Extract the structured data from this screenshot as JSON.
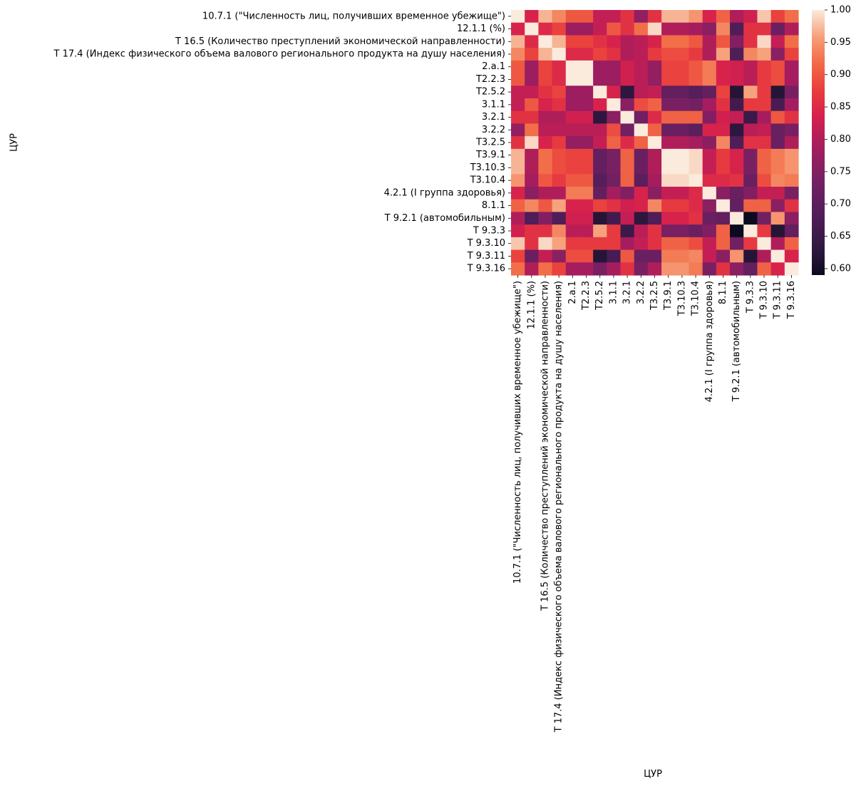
{
  "chart_data": {
    "type": "heatmap",
    "title": "",
    "xlabel": "ЦУР",
    "ylabel": "ЦУР",
    "labels": [
      "10.7.1 (\"Численность лиц, получивших временное убежище\")",
      "12.1.1 (%)",
      "Т 16.5 (Количество преступлений экономической направленности)",
      "Т 17.4 (Индекс физического объема валового регионального продукта на душу населения)",
      "2.а.1",
      "Т2.2.3",
      "Т2.5.2",
      "3.1.1",
      "3.2.1",
      "3.2.2",
      "Т3.2.5",
      "Т3.9.1",
      "Т3.10.3",
      "Т3.10.4",
      "4.2.1 (I группа здоровья)",
      "8.1.1",
      "Т 9.2.1 (автомобильным)",
      "Т 9.3.3",
      "Т 9.3.10",
      "Т 9.3.11",
      "Т 9.3.16"
    ],
    "x_tick_labels": [
      "10.7.1 (\"Численность лиц, получивших временное убежище\")",
      "12.1.1 (%)",
      "Т 16.5 (Количество преступлений экономической направленности)",
      "Т 17.4 (Индекс физического объема валового регионального продукта на душу населения)",
      "2.а.1",
      "Т2.2.3",
      "Т2.5.2",
      "3.1.1",
      "3.2.1",
      "3.2.2",
      "Т3.2.5",
      "Т3.9.1",
      "Т3.10.3",
      "Т3.10.4",
      "4.2.1 (I группа здоровья)",
      "8.1.1",
      "Т 9.2.1 (автомобильным)",
      "Т 9.3.3",
      "Т 9.3.10",
      "Т 9.3.11",
      "Т 9.3.16"
    ],
    "vmin": 0.59,
    "vmax": 1.0,
    "colorbar_ticks": [
      "0.60",
      "0.65",
      "0.70",
      "0.75",
      "0.80",
      "0.85",
      "0.90",
      "0.95",
      "1.00"
    ],
    "colormap": "rocket",
    "matrix": [
      [
        1.0,
        0.84,
        0.97,
        0.94,
        0.9,
        0.9,
        0.82,
        0.82,
        0.86,
        0.77,
        0.86,
        0.97,
        0.97,
        0.95,
        0.84,
        0.91,
        0.8,
        0.83,
        0.98,
        0.88,
        0.92
      ],
      [
        0.84,
        1.0,
        0.85,
        0.88,
        0.78,
        0.78,
        0.82,
        0.9,
        0.86,
        0.92,
        0.99,
        0.8,
        0.8,
        0.79,
        0.76,
        0.94,
        0.68,
        0.86,
        0.86,
        0.72,
        0.8
      ],
      [
        0.97,
        0.85,
        1.0,
        0.97,
        0.88,
        0.88,
        0.86,
        0.84,
        0.8,
        0.81,
        0.84,
        0.92,
        0.92,
        0.9,
        0.8,
        0.9,
        0.75,
        0.86,
        0.99,
        0.82,
        0.92
      ],
      [
        0.94,
        0.88,
        0.97,
        1.0,
        0.85,
        0.85,
        0.88,
        0.86,
        0.8,
        0.81,
        0.87,
        0.89,
        0.89,
        0.87,
        0.8,
        0.96,
        0.68,
        0.94,
        0.96,
        0.76,
        0.88
      ],
      [
        0.9,
        0.78,
        0.88,
        0.85,
        1.0,
        1.0,
        0.78,
        0.78,
        0.83,
        0.81,
        0.77,
        0.88,
        0.88,
        0.9,
        0.93,
        0.84,
        0.83,
        0.81,
        0.87,
        0.89,
        0.79
      ],
      [
        0.9,
        0.78,
        0.88,
        0.85,
        1.0,
        1.0,
        0.78,
        0.78,
        0.83,
        0.81,
        0.77,
        0.88,
        0.88,
        0.9,
        0.93,
        0.84,
        0.83,
        0.81,
        0.87,
        0.89,
        0.79
      ],
      [
        0.82,
        0.82,
        0.86,
        0.88,
        0.78,
        0.78,
        1.0,
        0.84,
        0.63,
        0.81,
        0.82,
        0.71,
        0.71,
        0.69,
        0.71,
        0.88,
        0.62,
        0.96,
        0.87,
        0.62,
        0.74
      ],
      [
        0.82,
        0.9,
        0.84,
        0.86,
        0.78,
        0.78,
        0.84,
        1.0,
        0.76,
        0.89,
        0.91,
        0.74,
        0.74,
        0.73,
        0.79,
        0.86,
        0.66,
        0.87,
        0.87,
        0.67,
        0.79
      ],
      [
        0.86,
        0.86,
        0.8,
        0.8,
        0.83,
        0.83,
        0.63,
        0.76,
        1.0,
        0.73,
        0.85,
        0.91,
        0.91,
        0.91,
        0.75,
        0.83,
        0.82,
        0.65,
        0.79,
        0.9,
        0.86
      ],
      [
        0.77,
        0.92,
        0.81,
        0.81,
        0.81,
        0.81,
        0.81,
        0.89,
        0.73,
        1.0,
        0.91,
        0.72,
        0.72,
        0.7,
        0.84,
        0.84,
        0.63,
        0.81,
        0.82,
        0.72,
        0.74
      ],
      [
        0.86,
        0.99,
        0.84,
        0.87,
        0.77,
        0.77,
        0.82,
        0.91,
        0.85,
        0.91,
        1.0,
        0.8,
        0.8,
        0.79,
        0.76,
        0.94,
        0.68,
        0.86,
        0.86,
        0.72,
        0.8
      ],
      [
        0.97,
        0.8,
        0.92,
        0.89,
        0.88,
        0.88,
        0.71,
        0.74,
        0.91,
        0.72,
        0.8,
        1.0,
        1.0,
        0.99,
        0.82,
        0.87,
        0.84,
        0.74,
        0.91,
        0.93,
        0.95
      ],
      [
        0.97,
        0.8,
        0.92,
        0.89,
        0.88,
        0.88,
        0.71,
        0.74,
        0.91,
        0.72,
        0.8,
        1.0,
        1.0,
        0.99,
        0.82,
        0.87,
        0.84,
        0.74,
        0.91,
        0.93,
        0.95
      ],
      [
        0.95,
        0.79,
        0.9,
        0.87,
        0.9,
        0.9,
        0.69,
        0.73,
        0.91,
        0.7,
        0.79,
        0.99,
        0.99,
        1.0,
        0.85,
        0.85,
        0.86,
        0.72,
        0.89,
        0.94,
        0.93
      ],
      [
        0.84,
        0.76,
        0.8,
        0.8,
        0.93,
        0.93,
        0.71,
        0.79,
        0.75,
        0.84,
        0.76,
        0.82,
        0.82,
        0.85,
        1.0,
        0.76,
        0.72,
        0.75,
        0.82,
        0.82,
        0.74
      ],
      [
        0.91,
        0.94,
        0.9,
        0.96,
        0.84,
        0.84,
        0.88,
        0.86,
        0.83,
        0.84,
        0.94,
        0.87,
        0.87,
        0.85,
        0.76,
        1.0,
        0.71,
        0.91,
        0.91,
        0.76,
        0.86
      ],
      [
        0.8,
        0.68,
        0.75,
        0.68,
        0.83,
        0.83,
        0.62,
        0.66,
        0.82,
        0.63,
        0.68,
        0.84,
        0.84,
        0.86,
        0.72,
        0.71,
        1.0,
        0.59,
        0.73,
        0.95,
        0.76
      ],
      [
        0.83,
        0.86,
        0.86,
        0.94,
        0.81,
        0.81,
        0.96,
        0.87,
        0.65,
        0.81,
        0.86,
        0.74,
        0.74,
        0.72,
        0.75,
        0.91,
        0.59,
        1.0,
        0.87,
        0.62,
        0.71
      ],
      [
        0.98,
        0.86,
        0.99,
        0.96,
        0.87,
        0.87,
        0.87,
        0.87,
        0.79,
        0.82,
        0.86,
        0.91,
        0.91,
        0.89,
        0.82,
        0.91,
        0.73,
        0.87,
        1.0,
        0.8,
        0.91
      ],
      [
        0.88,
        0.72,
        0.82,
        0.76,
        0.89,
        0.89,
        0.62,
        0.67,
        0.9,
        0.72,
        0.72,
        0.93,
        0.93,
        0.94,
        0.82,
        0.76,
        0.95,
        0.62,
        0.8,
        1.0,
        0.84
      ],
      [
        0.92,
        0.8,
        0.92,
        0.88,
        0.79,
        0.79,
        0.74,
        0.79,
        0.86,
        0.74,
        0.8,
        0.95,
        0.95,
        0.93,
        0.74,
        0.86,
        0.76,
        0.71,
        0.91,
        0.84,
        1.0
      ]
    ]
  }
}
